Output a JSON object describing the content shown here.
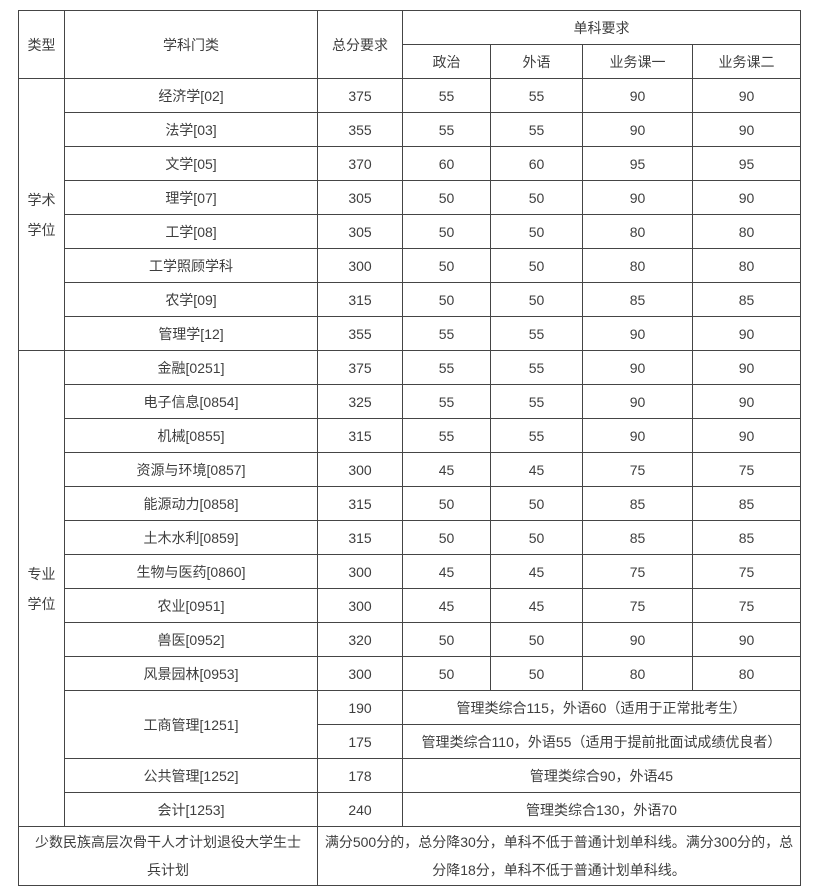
{
  "colors": {
    "text": "#3e3e3e",
    "border": "#454545",
    "background": "#ffffff"
  },
  "table": {
    "headers": {
      "type": "类型",
      "subject": "学科门类",
      "total": "总分要求",
      "single": "单科要求",
      "sub": [
        "政治",
        "外语",
        "业务课一",
        "业务课二"
      ]
    },
    "sections": [
      {
        "type_label": "学术学位",
        "rows": [
          {
            "subject": "经济学[02]",
            "total": "375",
            "scores": [
              "55",
              "55",
              "90",
              "90"
            ]
          },
          {
            "subject": "法学[03]",
            "total": "355",
            "scores": [
              "55",
              "55",
              "90",
              "90"
            ]
          },
          {
            "subject": "文学[05]",
            "total": "370",
            "scores": [
              "60",
              "60",
              "95",
              "95"
            ]
          },
          {
            "subject": "理学[07]",
            "total": "305",
            "scores": [
              "50",
              "50",
              "90",
              "90"
            ]
          },
          {
            "subject": "工学[08]",
            "total": "305",
            "scores": [
              "50",
              "50",
              "80",
              "80"
            ]
          },
          {
            "subject": "工学照顾学科",
            "total": "300",
            "scores": [
              "50",
              "50",
              "80",
              "80"
            ]
          },
          {
            "subject": "农学[09]",
            "total": "315",
            "scores": [
              "50",
              "50",
              "85",
              "85"
            ]
          },
          {
            "subject": "管理学[12]",
            "total": "355",
            "scores": [
              "55",
              "55",
              "90",
              "90"
            ]
          }
        ]
      },
      {
        "type_label": "专业学位",
        "rows": [
          {
            "subject": "金融[0251]",
            "total": "375",
            "scores": [
              "55",
              "55",
              "90",
              "90"
            ]
          },
          {
            "subject": "电子信息[0854]",
            "total": "325",
            "scores": [
              "55",
              "55",
              "90",
              "90"
            ]
          },
          {
            "subject": "机械[0855]",
            "total": "315",
            "scores": [
              "55",
              "55",
              "90",
              "90"
            ]
          },
          {
            "subject": "资源与环境[0857]",
            "total": "300",
            "scores": [
              "45",
              "45",
              "75",
              "75"
            ]
          },
          {
            "subject": "能源动力[0858]",
            "total": "315",
            "scores": [
              "50",
              "50",
              "85",
              "85"
            ]
          },
          {
            "subject": "土木水利[0859]",
            "total": "315",
            "scores": [
              "50",
              "50",
              "85",
              "85"
            ]
          },
          {
            "subject": "生物与医药[0860]",
            "total": "300",
            "scores": [
              "45",
              "45",
              "75",
              "75"
            ]
          },
          {
            "subject": "农业[0951]",
            "total": "300",
            "scores": [
              "45",
              "45",
              "75",
              "75"
            ]
          },
          {
            "subject": "兽医[0952]",
            "total": "320",
            "scores": [
              "50",
              "50",
              "90",
              "90"
            ]
          },
          {
            "subject": "风景园林[0953]",
            "total": "300",
            "scores": [
              "50",
              "50",
              "80",
              "80"
            ]
          },
          {
            "subject": "工商管理[1251]",
            "subrows": [
              {
                "total": "190",
                "note": "管理类综合115，外语60（适用于正常批考生）"
              },
              {
                "total": "175",
                "note": "管理类综合110，外语55（适用于提前批面试成绩优良者）"
              }
            ]
          },
          {
            "subject": "公共管理[1252]",
            "total": "178",
            "note": "管理类综合90，外语45"
          },
          {
            "subject": "会计[1253]",
            "total": "240",
            "note": "管理类综合130，外语70"
          }
        ]
      }
    ],
    "footer": {
      "label": "少数民族高层次骨干人才计划退役大学生士兵计划",
      "note": "满分500分的，总分降30分，单科不低于普通计划单科线。满分300分的，总分降18分，单科不低于普通计划单科线。"
    }
  }
}
